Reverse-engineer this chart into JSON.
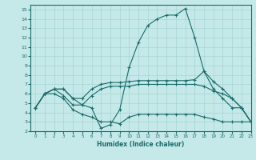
{
  "xlabel": "Humidex (Indice chaleur)",
  "xlim": [
    -0.5,
    23
  ],
  "ylim": [
    2,
    15.5
  ],
  "xticks": [
    0,
    1,
    2,
    3,
    4,
    5,
    6,
    7,
    8,
    9,
    10,
    11,
    12,
    13,
    14,
    15,
    16,
    17,
    18,
    19,
    20,
    21,
    22,
    23
  ],
  "yticks": [
    2,
    3,
    4,
    5,
    6,
    7,
    8,
    9,
    10,
    11,
    12,
    13,
    14,
    15
  ],
  "bg_color": "#c5e8e8",
  "line_color": "#1a6b6b",
  "grid_color": "#a8d4d4",
  "lines": [
    {
      "x": [
        0,
        1,
        2,
        3,
        4,
        5,
        6,
        7,
        8,
        9,
        10,
        11,
        12,
        13,
        14,
        15,
        16,
        17,
        18,
        19,
        20,
        21,
        22,
        23
      ],
      "y": [
        4.5,
        6.0,
        6.5,
        6.5,
        5.5,
        4.8,
        4.5,
        2.3,
        2.7,
        4.3,
        8.8,
        11.5,
        13.3,
        14.0,
        14.4,
        14.4,
        15.1,
        12.0,
        8.4,
        6.5,
        5.5,
        4.5,
        4.5,
        3.0
      ]
    },
    {
      "x": [
        0,
        1,
        2,
        3,
        4,
        5,
        6,
        7,
        8,
        9,
        10,
        11,
        12,
        13,
        14,
        15,
        16,
        17,
        18,
        19,
        20,
        21,
        22,
        23
      ],
      "y": [
        4.5,
        6.0,
        6.5,
        6.5,
        5.5,
        5.5,
        6.5,
        7.0,
        7.2,
        7.2,
        7.3,
        7.4,
        7.4,
        7.4,
        7.4,
        7.4,
        7.4,
        7.5,
        8.4,
        7.3,
        6.5,
        5.5,
        4.5,
        3.0
      ]
    },
    {
      "x": [
        0,
        1,
        2,
        3,
        4,
        5,
        6,
        7,
        8,
        9,
        10,
        11,
        12,
        13,
        14,
        15,
        16,
        17,
        18,
        19,
        20,
        21,
        22,
        23
      ],
      "y": [
        4.5,
        6.0,
        6.5,
        5.8,
        4.8,
        4.8,
        5.8,
        6.5,
        6.8,
        6.8,
        6.8,
        7.0,
        7.0,
        7.0,
        7.0,
        7.0,
        7.0,
        7.0,
        6.8,
        6.3,
        6.0,
        5.5,
        4.5,
        3.0
      ]
    },
    {
      "x": [
        0,
        1,
        2,
        3,
        4,
        5,
        6,
        7,
        8,
        9,
        10,
        11,
        12,
        13,
        14,
        15,
        16,
        17,
        18,
        19,
        20,
        21,
        22,
        23
      ],
      "y": [
        4.5,
        6.0,
        6.0,
        5.5,
        4.3,
        3.8,
        3.5,
        3.0,
        3.0,
        2.8,
        3.5,
        3.8,
        3.8,
        3.8,
        3.8,
        3.8,
        3.8,
        3.8,
        3.5,
        3.3,
        3.0,
        3.0,
        3.0,
        3.0
      ]
    }
  ]
}
